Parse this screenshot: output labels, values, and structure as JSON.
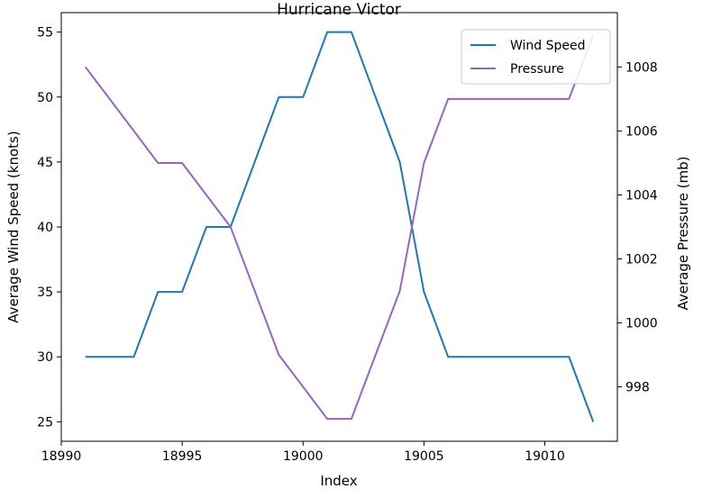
{
  "chart_data": {
    "type": "line",
    "title": "Hurricane Victor",
    "xlabel": "Index",
    "ylabel_left": "Average Wind Speed (knots)",
    "ylabel_right": "Average Pressure (mb)",
    "xlim": [
      18990,
      19013
    ],
    "ylim_left": [
      23.5,
      56.5
    ],
    "ylim_right": [
      996.3,
      1009.7
    ],
    "xticks": [
      18990,
      18995,
      19000,
      19005,
      19010
    ],
    "yticks_left": [
      25,
      30,
      35,
      40,
      45,
      50,
      55
    ],
    "yticks_right": [
      998,
      1000,
      1002,
      1004,
      1006,
      1008
    ],
    "grid": false,
    "legend_position": "top-right",
    "series": [
      {
        "name": "Wind Speed",
        "axis": "left",
        "color": "#1f77b4",
        "x": [
          18991,
          18992,
          18993,
          18994,
          18995,
          18996,
          18997,
          18998,
          18999,
          19000,
          19001,
          19002,
          19003,
          19004,
          19005,
          19006,
          19007,
          19008,
          19009,
          19010,
          19011,
          19012
        ],
        "y": [
          30,
          30,
          30,
          35,
          35,
          40,
          40,
          45,
          50,
          50,
          55,
          55,
          50,
          45,
          35,
          30,
          30,
          30,
          30,
          30,
          30,
          25
        ]
      },
      {
        "name": "Pressure",
        "axis": "right",
        "color": "#9467bd",
        "x": [
          18991,
          18992,
          18993,
          18994,
          18995,
          18996,
          18997,
          18998,
          18999,
          19000,
          19001,
          19002,
          19003,
          19004,
          19005,
          19006,
          19007,
          19008,
          19009,
          19010,
          19011,
          19012
        ],
        "y": [
          1008,
          1007,
          1006,
          1005,
          1005,
          1004,
          1003,
          1001,
          999,
          998,
          997,
          997,
          999,
          1001,
          1005,
          1007,
          1007,
          1007,
          1007,
          1007,
          1007,
          1009
        ]
      }
    ]
  }
}
